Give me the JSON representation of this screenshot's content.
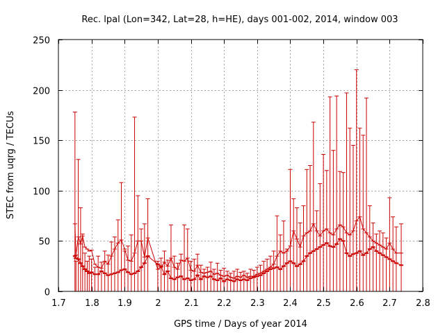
{
  "chart_data": {
    "type": "errorbar",
    "title": "Rec. lpal (Lon=342, Lat=28, h=HE), days 001-002, 2014, window 003",
    "xlabel": "GPS time / Days of year 2014",
    "ylabel": "STEC from uqrg / TECUs",
    "xlim": [
      1.7,
      2.8
    ],
    "ylim": [
      0,
      250
    ],
    "x_ticks": [
      "1.7",
      "1.8",
      "1.9",
      "2",
      "2.1",
      "2.2",
      "2.3",
      "2.4",
      "2.5",
      "2.6",
      "2.7",
      "2.8"
    ],
    "y_ticks": [
      "0",
      "50",
      "100",
      "150",
      "200",
      "250"
    ],
    "grid": true,
    "color": "#cc0000",
    "series": [
      {
        "name": "STEC",
        "points": [
          [
            1.75,
            35,
            0,
            178,
            67
          ],
          [
            1.753,
            33,
            0,
            30,
            36
          ],
          [
            1.76,
            32,
            0,
            131,
            54
          ],
          [
            1.767,
            28,
            0,
            83,
            47
          ],
          [
            1.773,
            25,
            0,
            57,
            55
          ],
          [
            1.78,
            22,
            0,
            38,
            44
          ],
          [
            1.787,
            20,
            0,
            30,
            42
          ],
          [
            1.793,
            18,
            0,
            35,
            40
          ],
          [
            1.8,
            19,
            0,
            32,
            41
          ],
          [
            1.81,
            17,
            0,
            24,
            27
          ],
          [
            1.82,
            17,
            0,
            35,
            24
          ],
          [
            1.83,
            20,
            0,
            29,
            23
          ],
          [
            1.84,
            18,
            0,
            40,
            30
          ],
          [
            1.85,
            16,
            0,
            36,
            27
          ],
          [
            1.86,
            17,
            0,
            49,
            35
          ],
          [
            1.87,
            18,
            0,
            54,
            42
          ],
          [
            1.88,
            19,
            0,
            71,
            48
          ],
          [
            1.89,
            21,
            0,
            108,
            51
          ],
          [
            1.9,
            22,
            0,
            40,
            42
          ],
          [
            1.91,
            19,
            0,
            45,
            31
          ],
          [
            1.92,
            17,
            0,
            56,
            30
          ],
          [
            1.93,
            18,
            0,
            173,
            38
          ],
          [
            1.94,
            20,
            0,
            95,
            50
          ],
          [
            1.95,
            24,
            0,
            62,
            50
          ],
          [
            1.96,
            28,
            0,
            67,
            34
          ],
          [
            1.97,
            35,
            0,
            92,
            53
          ],
          [
            2.0,
            27,
            0,
            30,
            22
          ],
          [
            2.01,
            25,
            0,
            33,
            24
          ],
          [
            2.02,
            17,
            0,
            40,
            29
          ],
          [
            2.03,
            20,
            0,
            31,
            25
          ],
          [
            2.04,
            13,
            0,
            66,
            33
          ],
          [
            2.05,
            12,
            0,
            35,
            24
          ],
          [
            2.06,
            14,
            0,
            28,
            22
          ],
          [
            2.07,
            15,
            0,
            37,
            31
          ],
          [
            2.08,
            12,
            0,
            66,
            30
          ],
          [
            2.09,
            13,
            0,
            62,
            33
          ],
          [
            2.1,
            11,
            0,
            30,
            21
          ],
          [
            2.11,
            12,
            0,
            32,
            20
          ],
          [
            2.12,
            16,
            0,
            37,
            26
          ],
          [
            2.13,
            12,
            0,
            26,
            19
          ],
          [
            2.14,
            15,
            0,
            22,
            18
          ],
          [
            2.15,
            14,
            0,
            24,
            19
          ],
          [
            2.16,
            15,
            0,
            29,
            20
          ],
          [
            2.17,
            12,
            0,
            22,
            17
          ],
          [
            2.18,
            11,
            0,
            28,
            18
          ],
          [
            2.19,
            13,
            0,
            21,
            16
          ],
          [
            2.2,
            10,
            0,
            23,
            15
          ],
          [
            2.21,
            12,
            0,
            20,
            16
          ],
          [
            2.22,
            11,
            0,
            18,
            14
          ],
          [
            2.23,
            10,
            0,
            20,
            13
          ],
          [
            2.24,
            12,
            0,
            22,
            15
          ],
          [
            2.25,
            11,
            0,
            19,
            14
          ],
          [
            2.26,
            12,
            0,
            20,
            16
          ],
          [
            2.27,
            11,
            0,
            18,
            14
          ],
          [
            2.28,
            13,
            0,
            22,
            15
          ],
          [
            2.29,
            14,
            0,
            21,
            15
          ],
          [
            2.3,
            15,
            0,
            24,
            17
          ],
          [
            2.31,
            16,
            0,
            26,
            18
          ],
          [
            2.32,
            18,
            0,
            30,
            20
          ],
          [
            2.33,
            20,
            0,
            32,
            22
          ],
          [
            2.34,
            22,
            0,
            35,
            24
          ],
          [
            2.35,
            23,
            0,
            40,
            27
          ],
          [
            2.36,
            24,
            0,
            75,
            35
          ],
          [
            2.37,
            22,
            0,
            56,
            40
          ],
          [
            2.38,
            25,
            0,
            70,
            38
          ],
          [
            2.39,
            28,
            0,
            42,
            40
          ],
          [
            2.4,
            30,
            0,
            121,
            45
          ],
          [
            2.41,
            28,
            0,
            92,
            60
          ],
          [
            2.42,
            25,
            0,
            83,
            52
          ],
          [
            2.43,
            27,
            0,
            68,
            44
          ],
          [
            2.44,
            30,
            0,
            85,
            55
          ],
          [
            2.45,
            35,
            0,
            121,
            58
          ],
          [
            2.46,
            38,
            0,
            125,
            60
          ],
          [
            2.47,
            40,
            0,
            168,
            67
          ],
          [
            2.48,
            42,
            0,
            80,
            60
          ],
          [
            2.49,
            44,
            0,
            107,
            55
          ],
          [
            2.5,
            46,
            0,
            136,
            60
          ],
          [
            2.51,
            48,
            0,
            120,
            62
          ],
          [
            2.52,
            45,
            0,
            193,
            58
          ],
          [
            2.53,
            44,
            0,
            140,
            56
          ],
          [
            2.54,
            47,
            0,
            194,
            62
          ],
          [
            2.55,
            52,
            0,
            119,
            66
          ],
          [
            2.56,
            50,
            0,
            118,
            64
          ],
          [
            2.57,
            38,
            0,
            197,
            58
          ],
          [
            2.58,
            35,
            0,
            162,
            56
          ],
          [
            2.59,
            37,
            0,
            145,
            60
          ],
          [
            2.6,
            38,
            0,
            220,
            70
          ],
          [
            2.61,
            40,
            0,
            162,
            74
          ],
          [
            2.62,
            36,
            0,
            155,
            62
          ],
          [
            2.63,
            38,
            0,
            192,
            58
          ],
          [
            2.64,
            42,
            0,
            85,
            54
          ],
          [
            2.65,
            44,
            0,
            68,
            50
          ],
          [
            2.66,
            40,
            0,
            57,
            48
          ],
          [
            2.67,
            38,
            0,
            60,
            46
          ],
          [
            2.68,
            36,
            0,
            58,
            44
          ],
          [
            2.69,
            34,
            0,
            53,
            42
          ],
          [
            2.7,
            32,
            0,
            93,
            48
          ],
          [
            2.71,
            30,
            0,
            74,
            42
          ],
          [
            2.72,
            28,
            0,
            64,
            38
          ],
          [
            2.735,
            26,
            0,
            67,
            38
          ]
        ]
      }
    ]
  }
}
